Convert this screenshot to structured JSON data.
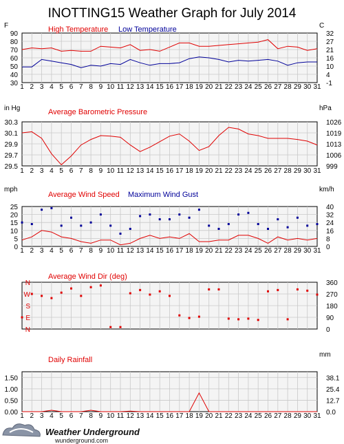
{
  "title": "INOTTING15 Weather Graph for July 2014",
  "colors": {
    "red": "#e00000",
    "blue": "#000099",
    "grid": "#c8c8c8",
    "plot_bg": "#f4f4f4"
  },
  "days": [
    1,
    2,
    3,
    4,
    5,
    6,
    7,
    8,
    9,
    10,
    11,
    12,
    13,
    14,
    15,
    16,
    17,
    18,
    19,
    20,
    21,
    22,
    23,
    24,
    25,
    26,
    27,
    28,
    29,
    30,
    31
  ],
  "chart_data": [
    {
      "type": "line",
      "name": "temperature",
      "left_unit": "F",
      "right_unit": "C",
      "legend": [
        "High Temperature",
        "Low Temperature"
      ],
      "ylim": [
        30,
        90
      ],
      "yticks": [
        90,
        80,
        70,
        60,
        50,
        40,
        30
      ],
      "right_ticks": [
        "32",
        "27",
        "21",
        "16",
        "10",
        "4",
        "-1"
      ],
      "series": [
        {
          "name": "High Temperature",
          "values": [
            70,
            72,
            71,
            72,
            68,
            69,
            68,
            68,
            74,
            73,
            72,
            76,
            69,
            70,
            68,
            73,
            78,
            78,
            74,
            74,
            75,
            76,
            77,
            78,
            79,
            82,
            71,
            74,
            73,
            69,
            71
          ]
        },
        {
          "name": "Low Temperature",
          "values": [
            49,
            49,
            58,
            56,
            54,
            52,
            48,
            51,
            50,
            53,
            52,
            58,
            54,
            51,
            53,
            53,
            54,
            59,
            61,
            60,
            58,
            55,
            57,
            56,
            57,
            58,
            56,
            51,
            54,
            55,
            55
          ]
        }
      ]
    },
    {
      "type": "line",
      "name": "pressure",
      "left_unit": "in Hg",
      "right_unit": "hPa",
      "legend": [
        "Average Barometric Pressure"
      ],
      "ylim": [
        29.5,
        30.3
      ],
      "yticks": [
        30.3,
        30.1,
        29.9,
        29.7,
        29.5
      ],
      "right_ticks": [
        "1026",
        "1019",
        "1013",
        "1006",
        "999"
      ],
      "series": [
        {
          "name": "Average Barometric Pressure",
          "values": [
            30.1,
            30.12,
            30.0,
            29.72,
            29.52,
            29.68,
            29.88,
            29.98,
            30.05,
            30.04,
            30.02,
            29.88,
            29.76,
            29.84,
            29.94,
            30.04,
            30.08,
            29.95,
            29.78,
            29.85,
            30.05,
            30.2,
            30.17,
            30.08,
            30.05,
            30.0,
            30.0,
            30.0,
            29.98,
            29.95,
            29.88
          ]
        }
      ]
    },
    {
      "type": "line",
      "name": "wind",
      "left_unit": "mph",
      "right_unit": "km/h",
      "legend": [
        "Average Wind Speed",
        "Maximum Wind Gust"
      ],
      "ylim": [
        0,
        25
      ],
      "yticks": [
        25,
        20,
        15,
        10,
        5,
        0
      ],
      "right_ticks": [
        "40",
        "32",
        "24",
        "16",
        "8",
        "0"
      ],
      "series": [
        {
          "name": "Average Wind Speed",
          "values": [
            4,
            6,
            10,
            9,
            6,
            5,
            3,
            2,
            4,
            4,
            1,
            2,
            5,
            7,
            5,
            6,
            5,
            8,
            3,
            3,
            4,
            4,
            7,
            7,
            5,
            2,
            6,
            4,
            5,
            4,
            5
          ]
        },
        {
          "name": "Maximum Wind Gust",
          "values": [
            15,
            14,
            23,
            24,
            13,
            18,
            13,
            15,
            20,
            13,
            8,
            11,
            19,
            20,
            17,
            17,
            20,
            18,
            23,
            13,
            11,
            14,
            20,
            21,
            14,
            11,
            17,
            12,
            18,
            13,
            14
          ]
        }
      ]
    },
    {
      "type": "scatter",
      "name": "wind_dir",
      "right_unit": "",
      "legend": [
        "Average Wind Dir (deg)"
      ],
      "ylim": [
        0,
        360
      ],
      "left_ticks": [
        "N",
        "W",
        "S",
        "E",
        "N"
      ],
      "left_tick_values": [
        360,
        270,
        180,
        90,
        0
      ],
      "right_ticks": [
        "360",
        "270",
        "180",
        "90",
        "0"
      ],
      "series": [
        {
          "name": "Average Wind Dir (deg)",
          "values": [
            90,
            270,
            255,
            238,
            280,
            312,
            255,
            322,
            335,
            15,
            15,
            275,
            300,
            265,
            290,
            255,
            105,
            85,
            95,
            305,
            305,
            80,
            75,
            80,
            70,
            290,
            300,
            75,
            305,
            295,
            265
          ]
        }
      ]
    },
    {
      "type": "line",
      "name": "rainfall",
      "left_unit": "in",
      "right_unit": "mm",
      "legend": [
        "Daily Rainfall"
      ],
      "ylim": [
        0,
        1.75
      ],
      "yticks": [
        1.5,
        1.0,
        0.5,
        0.0
      ],
      "yticks_labels": [
        "1.50",
        "1.00",
        "0.50",
        "0.00"
      ],
      "right_ticks": [
        "38.1",
        "25.4",
        "12.7",
        "0.0"
      ],
      "series": [
        {
          "name": "Daily Rainfall",
          "values": [
            0,
            0,
            0,
            0.06,
            0,
            0,
            0,
            0.06,
            0,
            0,
            0,
            0.02,
            0,
            0,
            0,
            0,
            0,
            0,
            0.82,
            0,
            0,
            0,
            0,
            0,
            0,
            0,
            0,
            0,
            0,
            0,
            0
          ]
        }
      ]
    }
  ],
  "logo": {
    "brand": "Weather Underground",
    "site": "wunderground.com"
  }
}
